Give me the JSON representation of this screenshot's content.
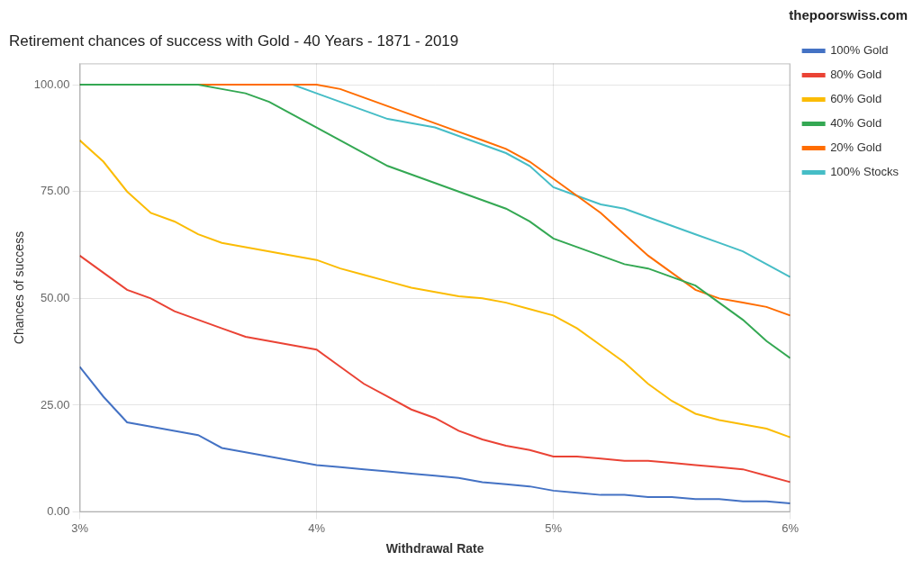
{
  "chart_data": {
    "type": "line",
    "title": "Retirement chances of success with Gold - 40 Years - 1871 - 2019",
    "x_label": "Withdrawal Rate",
    "y_label": "Chances of success",
    "annotations": [
      "thepoorswiss.com"
    ],
    "x": [
      3.0,
      3.1,
      3.2,
      3.3,
      3.4,
      3.5,
      3.6,
      3.7,
      3.8,
      3.9,
      4.0,
      4.1,
      4.2,
      4.3,
      4.4,
      4.5,
      4.6,
      4.7,
      4.8,
      4.9,
      5.0,
      5.1,
      5.2,
      5.3,
      5.4,
      5.5,
      5.6,
      5.7,
      5.8,
      5.9,
      6.0
    ],
    "series": [
      {
        "name": "100% Gold",
        "color": "#4472C4",
        "values": [
          34.0,
          27.0,
          21.0,
          20.0,
          19.0,
          18.0,
          15.0,
          14.0,
          13.0,
          12.0,
          11.0,
          10.5,
          10.0,
          9.5,
          9.0,
          8.5,
          8.0,
          7.0,
          6.5,
          6.0,
          5.0,
          4.5,
          4.0,
          4.0,
          3.5,
          3.5,
          3.0,
          3.0,
          2.5,
          2.5,
          2.0
        ]
      },
      {
        "name": "80% Gold",
        "color": "#EA4335",
        "values": [
          60.0,
          56.0,
          52.0,
          50.0,
          47.0,
          45.0,
          43.0,
          41.0,
          40.0,
          39.0,
          38.0,
          34.0,
          30.0,
          27.0,
          24.0,
          22.0,
          19.0,
          17.0,
          15.5,
          14.5,
          13.0,
          13.0,
          12.5,
          12.0,
          12.0,
          11.5,
          11.0,
          10.5,
          10.0,
          8.5,
          7.0
        ]
      },
      {
        "name": "60% Gold",
        "color": "#FBBC04",
        "values": [
          87.0,
          82.0,
          75.0,
          70.0,
          68.0,
          65.0,
          63.0,
          62.0,
          61.0,
          60.0,
          59.0,
          57.0,
          55.5,
          54.0,
          52.5,
          51.5,
          50.5,
          50.0,
          49.0,
          47.5,
          46.0,
          43.0,
          39.0,
          35.0,
          30.0,
          26.0,
          23.0,
          21.5,
          20.5,
          19.5,
          17.5
        ]
      },
      {
        "name": "40% Gold",
        "color": "#34A853",
        "values": [
          100.0,
          100.0,
          100.0,
          100.0,
          100.0,
          100.0,
          99.0,
          98.0,
          96.0,
          93.0,
          90.0,
          87.0,
          84.0,
          81.0,
          79.0,
          77.0,
          75.0,
          73.0,
          71.0,
          68.0,
          64.0,
          62.0,
          60.0,
          58.0,
          57.0,
          55.0,
          53.0,
          49.0,
          45.0,
          40.0,
          36.0
        ]
      },
      {
        "name": "20% Gold",
        "color": "#FF6D00",
        "values": [
          100.0,
          100.0,
          100.0,
          100.0,
          100.0,
          100.0,
          100.0,
          100.0,
          100.0,
          100.0,
          100.0,
          99.0,
          97.0,
          95.0,
          93.0,
          91.0,
          89.0,
          87.0,
          85.0,
          82.0,
          78.0,
          74.0,
          70.0,
          65.0,
          60.0,
          56.0,
          52.0,
          50.0,
          49.0,
          48.0,
          46.0
        ]
      },
      {
        "name": "100% Stocks",
        "color": "#46BDC6",
        "values": [
          100.0,
          100.0,
          100.0,
          100.0,
          100.0,
          100.0,
          100.0,
          100.0,
          100.0,
          100.0,
          98.0,
          96.0,
          94.0,
          92.0,
          91.0,
          90.0,
          88.0,
          86.0,
          84.0,
          81.0,
          76.0,
          74.0,
          72.0,
          71.0,
          69.0,
          67.0,
          65.0,
          63.0,
          61.0,
          58.0,
          55.0
        ]
      }
    ],
    "xlim": [
      3.0,
      6.0
    ],
    "xticks": [
      {
        "value": 3.0,
        "label": "3%"
      },
      {
        "value": 4.0,
        "label": "4%"
      },
      {
        "value": 5.0,
        "label": "5%"
      },
      {
        "value": 6.0,
        "label": "6%"
      }
    ],
    "ylim": [
      0,
      105
    ],
    "yticks": [
      {
        "value": 0.0,
        "label": "0.00"
      },
      {
        "value": 25.0,
        "label": "25.00"
      },
      {
        "value": 50.0,
        "label": "50.00"
      },
      {
        "value": 75.0,
        "label": "75.00"
      },
      {
        "value": 100.0,
        "label": "100.00"
      }
    ],
    "grid": true,
    "legend": "upper right"
  }
}
